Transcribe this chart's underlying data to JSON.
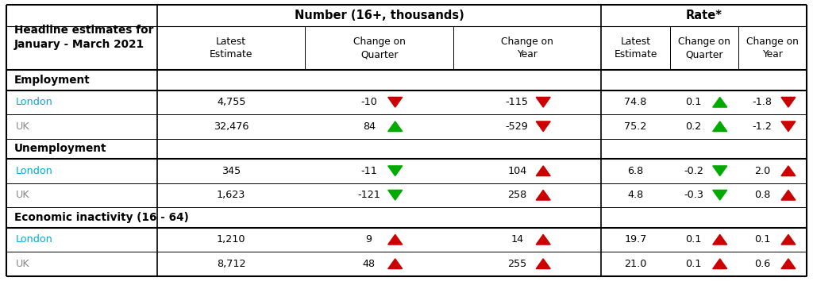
{
  "title_line1": "Headline estimates for",
  "title_line2": "January - March 2021",
  "header_number": "Number (16+, thousands)",
  "header_rate": "Rate*",
  "col_headers_num": [
    "Latest\nEstimate",
    "Change on\nQuarter",
    "Change on\nYear"
  ],
  "col_headers_rate": [
    "Latest\nEstimate",
    "Change on\nQuarter",
    "Change on\nYear"
  ],
  "sections": [
    {
      "name": "Employment",
      "rows": [
        {
          "label": "London",
          "is_london": true,
          "values": [
            "4,755",
            "-10",
            "-115",
            "74.8",
            "0.1",
            "-1.8"
          ],
          "arrows": [
            null,
            "down_red",
            "down_red",
            null,
            "up_green",
            "down_red"
          ]
        },
        {
          "label": "UK",
          "is_london": false,
          "values": [
            "32,476",
            "84",
            "-529",
            "75.2",
            "0.2",
            "-1.2"
          ],
          "arrows": [
            null,
            "up_green",
            "down_red",
            null,
            "up_green",
            "down_red"
          ]
        }
      ]
    },
    {
      "name": "Unemployment",
      "rows": [
        {
          "label": "London",
          "is_london": true,
          "values": [
            "345",
            "-11",
            "104",
            "6.8",
            "-0.2",
            "2.0"
          ],
          "arrows": [
            null,
            "down_green",
            "up_red",
            null,
            "down_green",
            "up_red"
          ]
        },
        {
          "label": "UK",
          "is_london": false,
          "values": [
            "1,623",
            "-121",
            "258",
            "4.8",
            "-0.3",
            "0.8"
          ],
          "arrows": [
            null,
            "down_green",
            "up_red",
            null,
            "down_green",
            "up_red"
          ]
        }
      ]
    },
    {
      "name": "Economic inactivity (16 - 64)",
      "rows": [
        {
          "label": "London",
          "is_london": true,
          "values": [
            "1,210",
            "9",
            "14",
            "19.7",
            "0.1",
            "0.1"
          ],
          "arrows": [
            null,
            "up_red",
            "up_red",
            null,
            "up_red",
            "up_red"
          ]
        },
        {
          "label": "UK",
          "is_london": false,
          "values": [
            "8,712",
            "48",
            "255",
            "21.0",
            "0.1",
            "0.6"
          ],
          "arrows": [
            null,
            "up_red",
            "up_red",
            null,
            "up_red",
            "up_red"
          ]
        }
      ]
    }
  ],
  "london_color": "#00AADD",
  "uk_color": "#888888",
  "up_red_color": "#CC0000",
  "down_red_color": "#CC0000",
  "up_green_color": "#00AA00",
  "down_green_color": "#00AA00",
  "fig_w": 10.24,
  "fig_h": 3.59,
  "dpi": 100
}
